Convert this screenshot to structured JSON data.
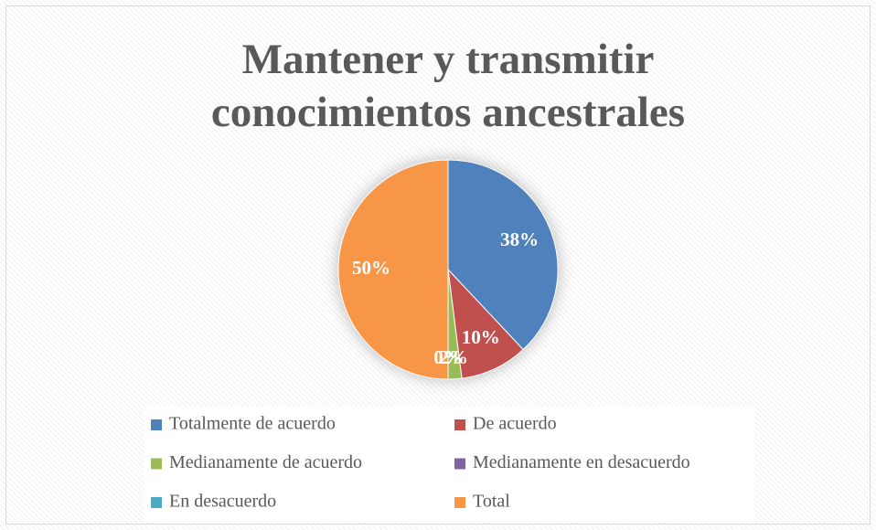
{
  "chart_data": {
    "type": "pie",
    "title": "Mantener y transmitir conocimientos ancestrales",
    "categories": [
      "Totalmente de acuerdo",
      "De acuerdo",
      "Medianamente de acuerdo",
      "Medianamente en desacuerdo",
      "En desacuerdo",
      "Total"
    ],
    "values": [
      38,
      10,
      2,
      0,
      0,
      50
    ],
    "value_labels": [
      "38%",
      "10%",
      "2%",
      "0%",
      "0%",
      "50%"
    ],
    "colors": [
      "#4f81bd",
      "#c0504d",
      "#9bbb59",
      "#8064a2",
      "#4bacc6",
      "#f79646"
    ],
    "legend": "bottom"
  }
}
